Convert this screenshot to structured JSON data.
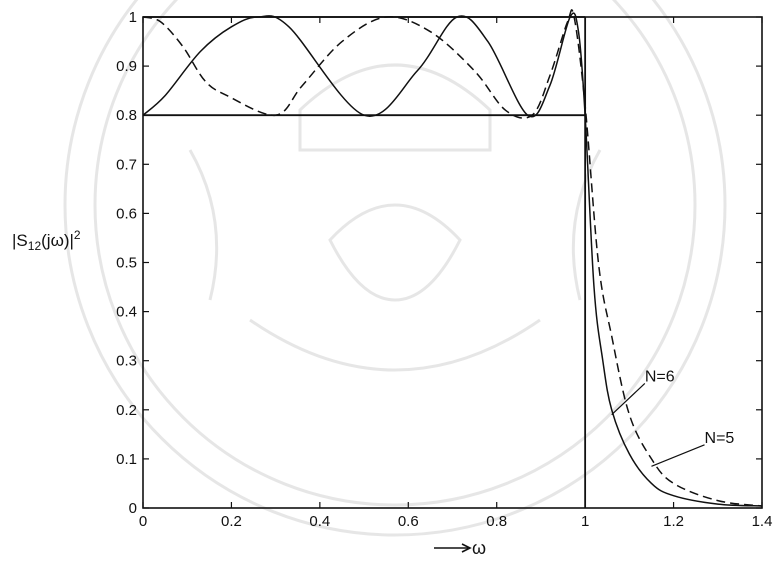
{
  "chart_data": {
    "type": "line",
    "xlabel": "⟶ ω",
    "ylabel": "|S12(jω)|²",
    "ylabel_parts": {
      "base": "|S",
      "sub": "12",
      "mid": "(jω)|",
      "sup": "2"
    },
    "xlim": [
      0,
      1.4
    ],
    "ylim": [
      0,
      1
    ],
    "x_ticks": [
      "0",
      "0.2",
      "0.4",
      "0.6",
      "0.8",
      "1",
      "1.2",
      "1.4"
    ],
    "y_ticks": [
      "0",
      "0.1",
      "0.2",
      "0.3",
      "0.4",
      "0.5",
      "0.6",
      "0.7",
      "0.8",
      "0.9",
      "1"
    ],
    "grid": false,
    "series": [
      {
        "name": "N=6",
        "style": "solid",
        "x": [
          0,
          0.05,
          0.13,
          0.2,
          0.26,
          0.33,
          0.5,
          0.62,
          0.71,
          0.78,
          0.87,
          0.92,
          0.966,
          0.985,
          1.0,
          1.02,
          1.04,
          1.06,
          1.1,
          1.15,
          1.2,
          1.3,
          1.4
        ],
        "y": [
          0.8,
          0.84,
          0.93,
          0.98,
          1.0,
          0.98,
          0.8,
          0.89,
          1.0,
          0.95,
          0.8,
          0.86,
          1.0,
          0.97,
          0.8,
          0.45,
          0.3,
          0.2,
          0.11,
          0.05,
          0.025,
          0.008,
          0.004
        ]
      },
      {
        "name": "N=5",
        "style": "dashed",
        "x": [
          0,
          0.04,
          0.09,
          0.14,
          0.19,
          0.3,
          0.36,
          0.45,
          0.55,
          0.65,
          0.75,
          0.82,
          0.88,
          0.92,
          0.96,
          0.975,
          1.0,
          1.03,
          1.06,
          1.1,
          1.15,
          1.2,
          1.3,
          1.4
        ],
        "y": [
          1.0,
          0.99,
          0.94,
          0.87,
          0.84,
          0.8,
          0.86,
          0.95,
          1.0,
          0.97,
          0.89,
          0.81,
          0.8,
          0.88,
          0.99,
          1.0,
          0.82,
          0.5,
          0.35,
          0.19,
          0.1,
          0.05,
          0.015,
          0.004
        ]
      }
    ],
    "reference_lines": [
      {
        "orientation": "horizontal",
        "value": 0.8
      },
      {
        "orientation": "horizontal",
        "value": 1
      },
      {
        "orientation": "vertical",
        "value": 1
      }
    ],
    "annotations": [
      {
        "text": "N=6",
        "target_x": 1.06,
        "target_y": 0.19,
        "text_x": 1.135,
        "text_y": 0.27
      },
      {
        "text": "N=5",
        "target_x": 1.15,
        "target_y": 0.085,
        "text_x": 1.27,
        "text_y": 0.145
      }
    ]
  }
}
